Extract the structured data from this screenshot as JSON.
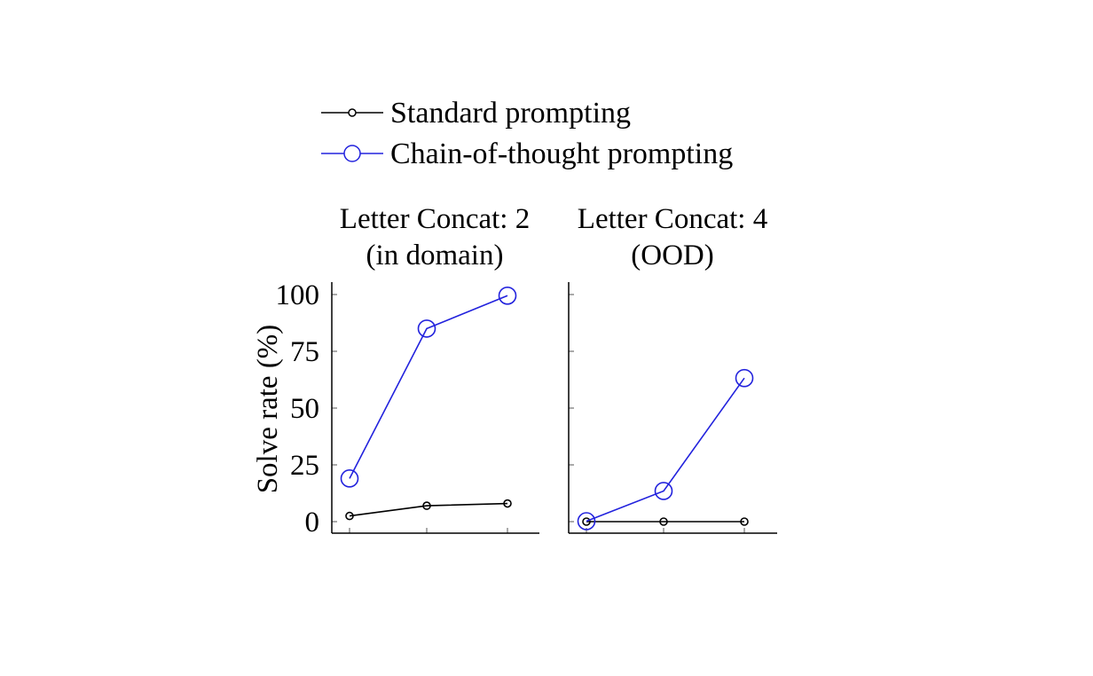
{
  "chart_data": [
    {
      "type": "line",
      "title": "Letter Concat: 2",
      "subtitle": "(in domain)",
      "xlabel": "",
      "ylabel": "Solve rate (%)",
      "ylim": [
        0,
        100
      ],
      "yticks": [
        "0",
        "25",
        "50",
        "75",
        "100"
      ],
      "show_tick_labels": true,
      "grid": false,
      "series": [
        {
          "name": "Standard prompting",
          "color": "#000000",
          "values": [
            2.5,
            7,
            8
          ]
        },
        {
          "name": "Chain-of-thought prompting",
          "color": "#2222dd",
          "values": [
            19,
            85,
            99.5
          ]
        }
      ]
    },
    {
      "type": "line",
      "title": "Letter Concat: 4",
      "subtitle": "(OOD)",
      "xlabel": "",
      "ylabel": "",
      "ylim": [
        0,
        100
      ],
      "yticks": [
        "",
        "",
        "",
        "",
        ""
      ],
      "show_tick_labels": false,
      "grid": false,
      "series": [
        {
          "name": "Standard prompting",
          "color": "#000000",
          "values": [
            0,
            0,
            0
          ]
        },
        {
          "name": "Chain-of-thought prompting",
          "color": "#2222dd",
          "values": [
            0.2,
            13.5,
            63.2
          ]
        }
      ]
    }
  ],
  "legend": {
    "placement": "top",
    "entries": [
      {
        "label": "Standard prompting",
        "color": "#000000",
        "marker": "small-circle"
      },
      {
        "label": "Chain-of-thought prompting",
        "color": "#2222dd",
        "marker": "large-circle"
      }
    ]
  }
}
